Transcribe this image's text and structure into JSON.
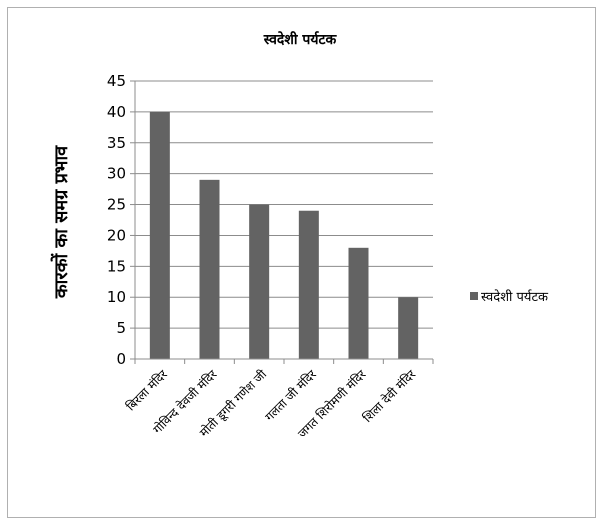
{
  "chart_data": {
    "type": "bar",
    "title": "स्वदेशी पर्यटक",
    "ylabel": "कारकों का समग्र प्रभाव",
    "xlabel": "",
    "categories": [
      "बिरला मंदिर",
      "गोविन्द देवजी मंदिर",
      "मोती डूगरी गणेश जी",
      "गलता जी मंदिर",
      "जगत शिरोमणी मंदिर",
      "शिला देवी मंदिर"
    ],
    "series": [
      {
        "name": "स्वदेशी पर्यटक",
        "values": [
          40,
          29,
          25,
          24,
          18,
          10
        ],
        "color": "#636363"
      }
    ],
    "ylim": [
      0,
      45
    ],
    "yticks": [
      "0",
      "5",
      "10",
      "15",
      "20",
      "25",
      "30",
      "35",
      "40",
      "45"
    ],
    "grid": true,
    "legend_position": "right"
  }
}
